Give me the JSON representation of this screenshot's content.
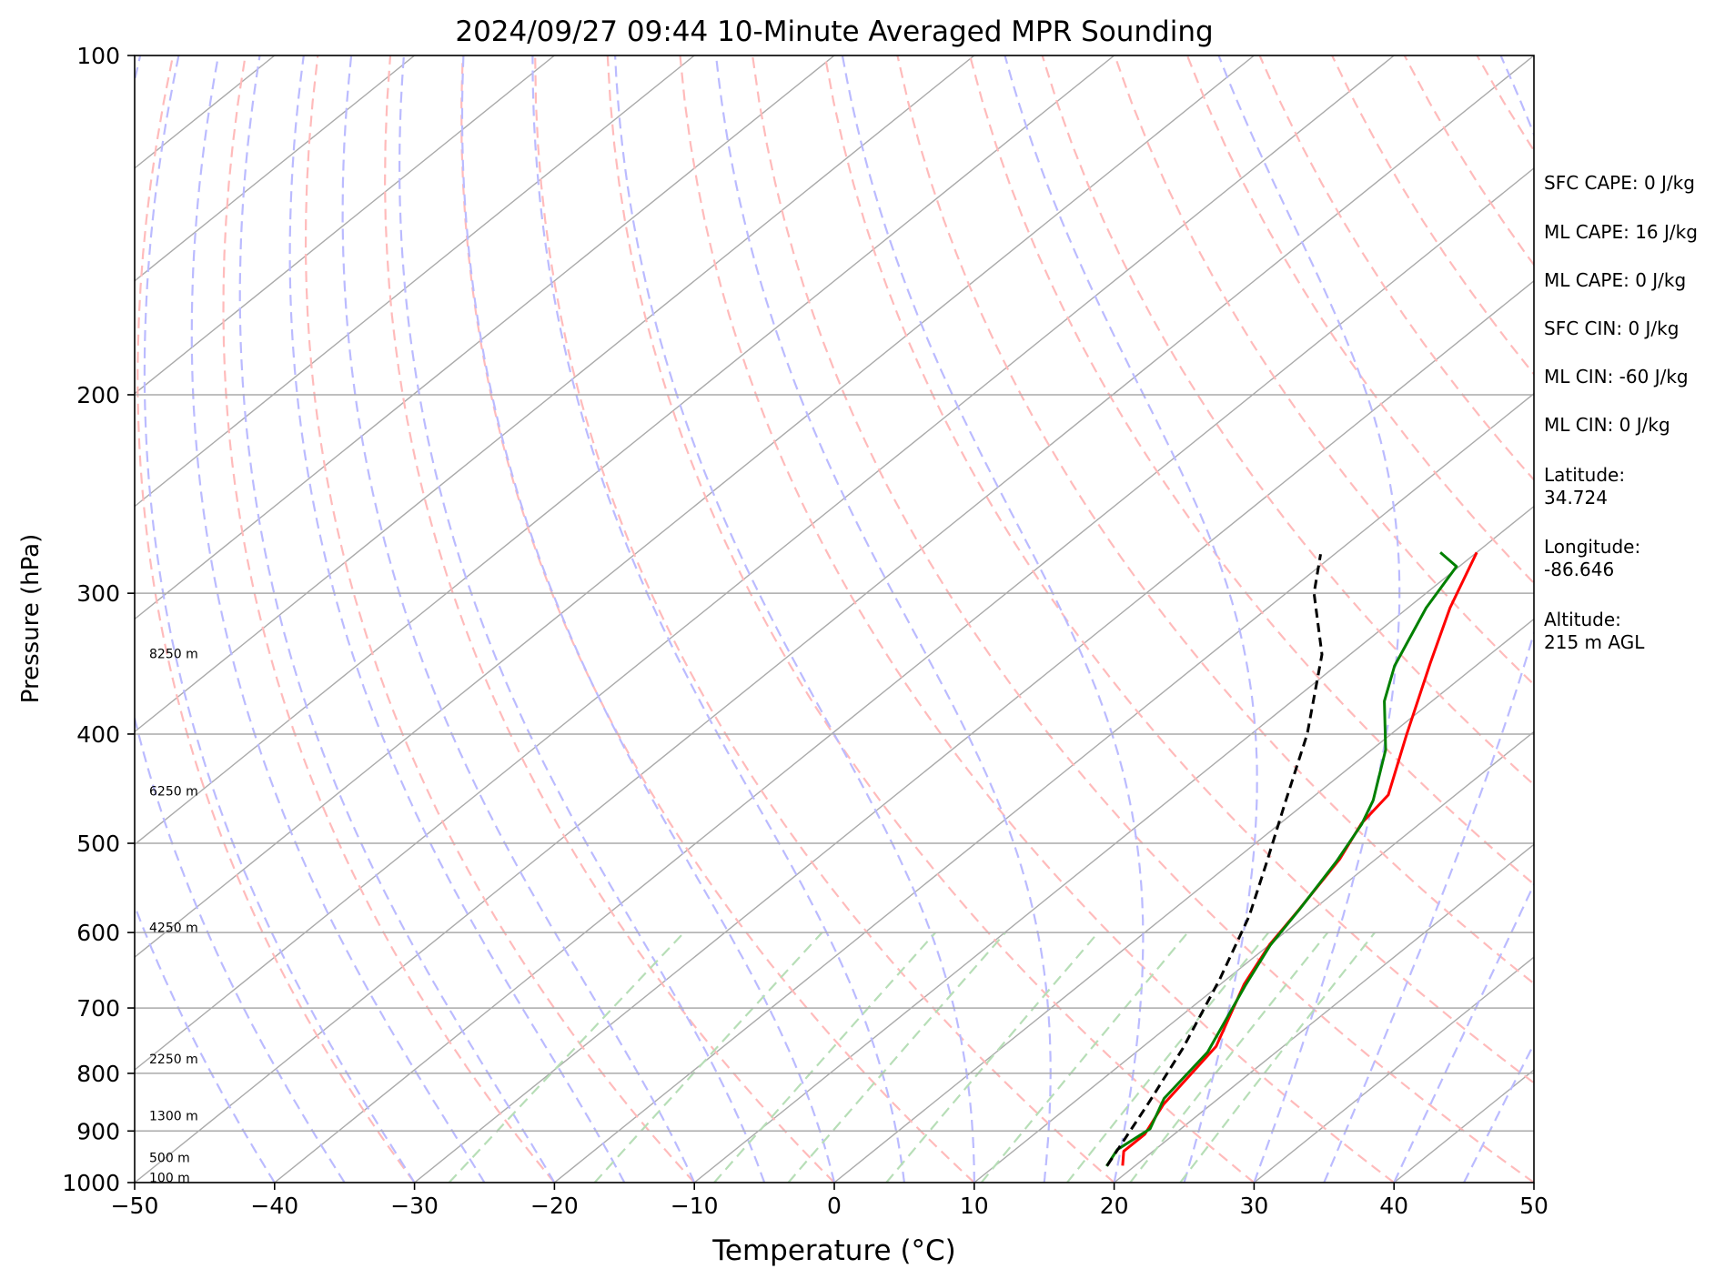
{
  "chart_data": {
    "type": "line",
    "subtype": "skew-t",
    "title": "2024/09/27 09:44 10-Minute Averaged MPR Sounding",
    "xlabel": "Temperature (°C)",
    "ylabel": "Pressure (hPa)",
    "xlim": [
      -50,
      50
    ],
    "ylim": [
      1000,
      100
    ],
    "y_scale": "log",
    "x_ticks": [
      "−50",
      "−40",
      "−30",
      "−20",
      "−10",
      "0",
      "10",
      "20",
      "30",
      "40",
      "50"
    ],
    "y_ticks": [
      "100",
      "200",
      "300",
      "400",
      "500",
      "600",
      "700",
      "800",
      "900",
      "1000"
    ],
    "height_labels": [
      {
        "text": "8250 m",
        "p": 340
      },
      {
        "text": "6250 m",
        "p": 450
      },
      {
        "text": "4250 m",
        "p": 595
      },
      {
        "text": "2250 m",
        "p": 778
      },
      {
        "text": "1300 m",
        "p": 874
      },
      {
        "text": "500 m",
        "p": 952
      },
      {
        "text": "100 m",
        "p": 992
      }
    ],
    "series": [
      {
        "color": "#ff0000",
        "points": [
          [
            19.1,
            966
          ],
          [
            17.9,
            938
          ],
          [
            17.9,
            906
          ],
          [
            16.6,
            853
          ],
          [
            15.2,
            757
          ],
          [
            11.7,
            667
          ],
          [
            10.0,
            615
          ],
          [
            9.0,
            573
          ],
          [
            7.4,
            516
          ],
          [
            5.8,
            480
          ],
          [
            5.2,
            453
          ],
          [
            1.2,
            401
          ],
          [
            -3.5,
            346
          ],
          [
            -7.0,
            309
          ],
          [
            -10.0,
            276
          ]
        ],
        "linewidth": 2.5
      },
      {
        "color": "#008000",
        "points": [
          [
            18.0,
            967
          ],
          [
            17.3,
            935
          ],
          [
            17.8,
            896
          ],
          [
            16.1,
            842
          ],
          [
            15.1,
            766
          ],
          [
            11.9,
            669
          ],
          [
            10.1,
            616
          ],
          [
            9.0,
            572
          ],
          [
            7.4,
            519
          ],
          [
            5.9,
            481
          ],
          [
            4.6,
            458
          ],
          [
            1.0,
            413
          ],
          [
            -3.4,
            374
          ],
          [
            -5.8,
            348
          ],
          [
            -8.7,
            309
          ],
          [
            -10.2,
            284
          ],
          [
            -12.6,
            276
          ]
        ],
        "linewidth": 2.5
      },
      {
        "color": "#000000",
        "dashed": true,
        "points": [
          [
            18.0,
            966
          ],
          [
            15.4,
            850
          ],
          [
            13.0,
            760
          ],
          [
            9.5,
            660
          ],
          [
            6.0,
            580
          ],
          [
            2.5,
            520
          ],
          [
            -1.5,
            460
          ],
          [
            -6.0,
            400
          ],
          [
            -12.0,
            340
          ],
          [
            -18.0,
            300
          ],
          [
            -21.0,
            277
          ]
        ],
        "linewidth": 2.5
      }
    ],
    "reference_lines": {
      "isotherms": {
        "color": "#aaaaaa",
        "step": 10
      },
      "dry_adiabats": {
        "color": "#ffbbbb",
        "dashed": true
      },
      "moist_adiabats": {
        "color": "#bbbbff",
        "dashed": true
      },
      "mixing_ratio_lines": {
        "color": "#b7deb7",
        "dashed": true
      },
      "isobars": {
        "color": "#aaaaaa"
      }
    },
    "grid": true
  },
  "info": {
    "sfc_cape": "SFC CAPE: 0 J/kg",
    "ml_cape_1": "ML CAPE: 16 J/kg",
    "ml_cape_2": "ML CAPE: 0 J/kg",
    "sfc_cin": "SFC CIN: 0 J/kg",
    "ml_cin_1": "ML CIN: -60 J/kg",
    "ml_cin_2": "ML CIN: 0 J/kg",
    "latitude": "Latitude:\n34.724",
    "longitude": "Longitude:\n-86.646",
    "altitude": "Altitude:\n215 m AGL"
  }
}
